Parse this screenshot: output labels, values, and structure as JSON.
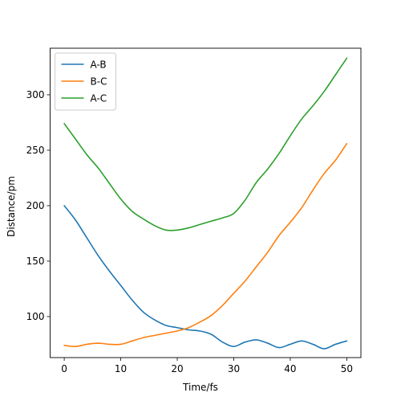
{
  "chart_data": {
    "type": "line",
    "title": "",
    "xlabel": "Time/fs",
    "ylabel": "Distance/pm",
    "xlim": [
      -2.5,
      52.5
    ],
    "ylim": [
      63,
      342
    ],
    "xticks": [
      0,
      10,
      20,
      30,
      40,
      50
    ],
    "yticks": [
      100,
      150,
      200,
      250,
      300
    ],
    "grid": false,
    "legend_position": "top-left",
    "series": [
      {
        "name": "A-B",
        "color": "#1f77b4",
        "x": [
          0,
          2,
          4,
          6,
          8,
          10,
          12,
          14,
          16,
          18,
          20,
          22,
          24,
          26,
          28,
          30,
          32,
          34,
          36,
          38,
          40,
          42,
          44,
          46,
          48,
          50
        ],
        "values": [
          200,
          187,
          171,
          155,
          141,
          128,
          115,
          104,
          97,
          92,
          90,
          88,
          87,
          84,
          77,
          73,
          77,
          79,
          76,
          72,
          75,
          78,
          75,
          71,
          75,
          78
        ]
      },
      {
        "name": "B-C",
        "color": "#ff7f0e",
        "x": [
          0,
          2,
          4,
          6,
          8,
          10,
          12,
          14,
          16,
          18,
          20,
          22,
          24,
          26,
          28,
          30,
          32,
          34,
          36,
          38,
          40,
          42,
          44,
          46,
          48,
          50
        ],
        "values": [
          74,
          73,
          75,
          76,
          75,
          75,
          78,
          81,
          83,
          85,
          87,
          90,
          95,
          101,
          110,
          121,
          132,
          145,
          158,
          173,
          185,
          198,
          214,
          229,
          241,
          256
        ]
      },
      {
        "name": "A-C",
        "color": "#2ca02c",
        "x": [
          0,
          2,
          4,
          6,
          8,
          10,
          12,
          14,
          16,
          18,
          20,
          22,
          24,
          26,
          28,
          30,
          32,
          34,
          36,
          38,
          40,
          42,
          44,
          46,
          48,
          50
        ],
        "values": [
          274,
          260,
          246,
          234,
          220,
          206,
          195,
          188,
          182,
          178,
          178,
          180,
          183,
          186,
          189,
          193,
          205,
          221,
          233,
          247,
          263,
          278,
          290,
          303,
          318,
          333
        ]
      }
    ]
  }
}
